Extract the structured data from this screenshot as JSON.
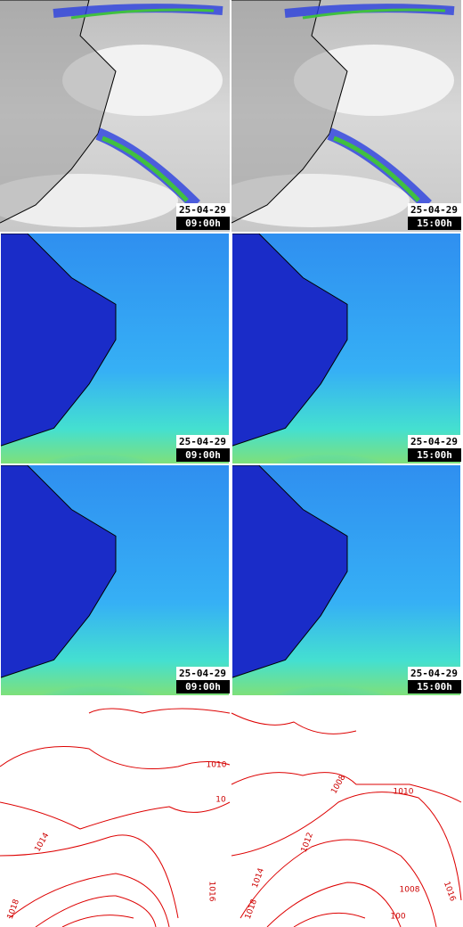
{
  "rows": [
    {
      "left": {
        "date": "25-04-29",
        "time": "09:00h"
      },
      "right": {
        "date": "25-04-29",
        "time": "15:00h"
      }
    },
    {
      "left": {
        "date": "25-04-29",
        "time": "09:00h"
      },
      "right": {
        "date": "25-04-29",
        "time": "15:00h"
      }
    },
    {
      "left": {
        "date": "25-04-29",
        "time": "09:00h"
      },
      "right": {
        "date": "25-04-29",
        "time": "15:00h"
      }
    }
  ],
  "contours": {
    "left": [
      "1010",
      "10",
      "1014",
      "1018",
      "1016"
    ],
    "right": [
      "1010",
      "1008",
      "1012",
      "1014",
      "1016",
      "1008",
      "100",
      "1018"
    ]
  }
}
